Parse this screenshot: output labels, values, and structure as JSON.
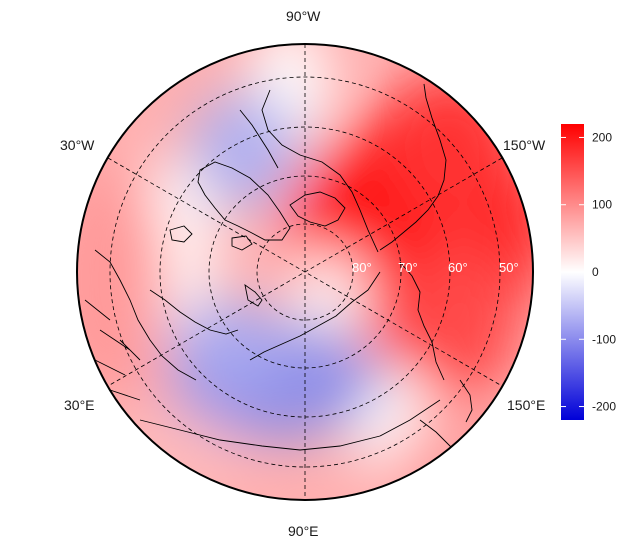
{
  "map": {
    "projection": "north-polar-stereographic",
    "lon_labels": [
      "90°W",
      "30°W",
      "150°W",
      "30°E",
      "150°E",
      "90°E"
    ],
    "lat_labels": [
      "80°",
      "70°",
      "60°",
      "50°"
    ],
    "colors": {
      "negative": "#0000ff",
      "zero": "#ffffff",
      "positive": "#ff0000"
    }
  },
  "colorbar": {
    "ticks": [
      "200",
      "100",
      "0",
      "-100",
      "-200"
    ],
    "range": [
      -220,
      220
    ]
  }
}
